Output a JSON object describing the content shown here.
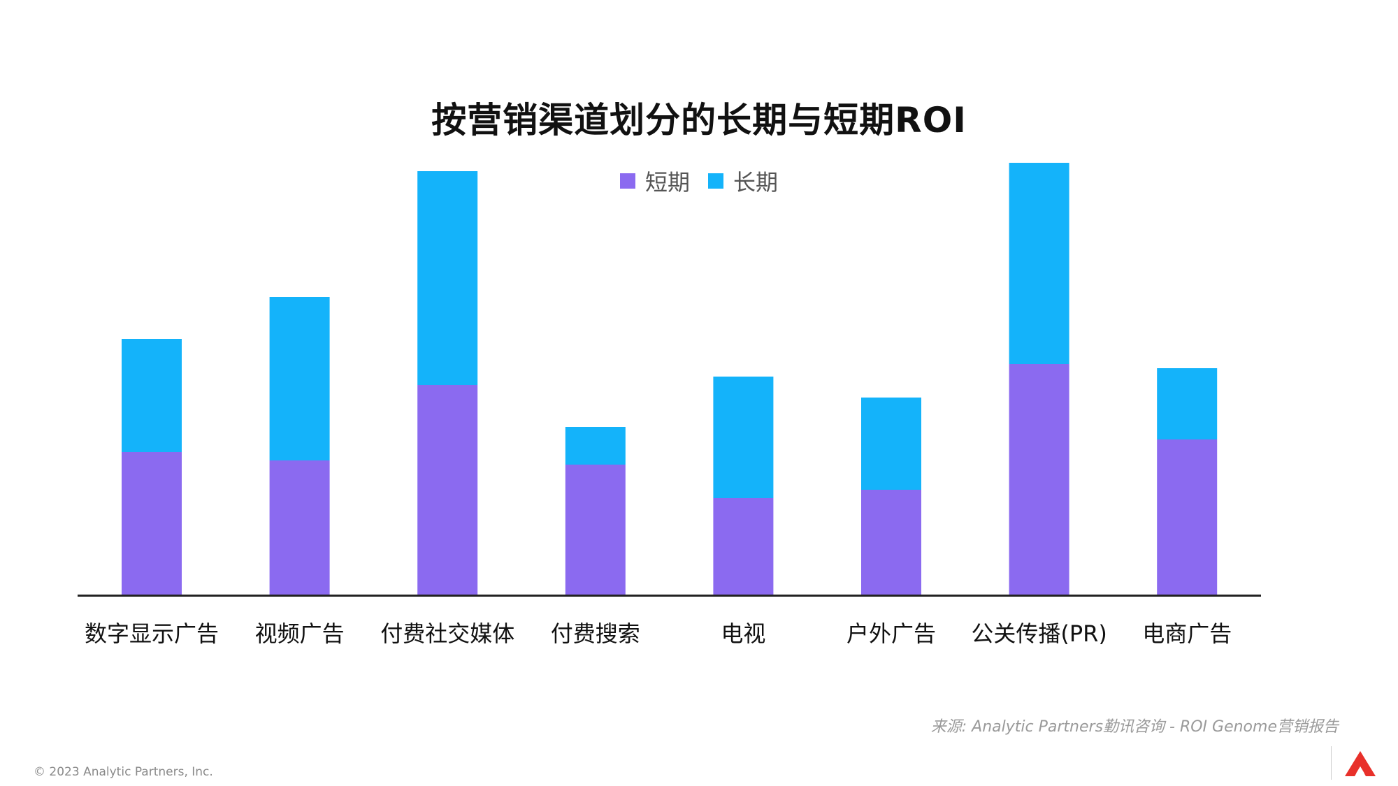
{
  "title": "按营销渠道划分的长期与短期ROI",
  "legend": {
    "short": "短期",
    "long": "长期"
  },
  "colors": {
    "short": "#8B6AF0",
    "long": "#14B3FA",
    "axis": "#222222"
  },
  "chart_data": {
    "type": "bar",
    "stacked": true,
    "title": "按营销渠道划分的长期与短期ROI",
    "xlabel": "",
    "ylabel": "",
    "grid": false,
    "legend_position": "top-center",
    "ylim": [
      0,
      1.0
    ],
    "categories": [
      "数字显示广告",
      "视频广告",
      "付费社交媒体",
      "付费搜索",
      "电视",
      "户外广告",
      "公关传播(PR)",
      "电商广告"
    ],
    "series": [
      {
        "name": "短期",
        "values": [
          0.34,
          0.32,
          0.5,
          0.31,
          0.23,
          0.25,
          0.55,
          0.37
        ]
      },
      {
        "name": "长期",
        "values": [
          0.27,
          0.39,
          0.51,
          0.09,
          0.29,
          0.22,
          0.48,
          0.17
        ]
      }
    ]
  },
  "footer": {
    "source": "来源: Analytic Partners勤讯咨询 - ROI Genome营销报告",
    "copyright": "© 2023 Analytic Partners, Inc."
  },
  "logo_icon": "analytic-partners-logo-icon"
}
